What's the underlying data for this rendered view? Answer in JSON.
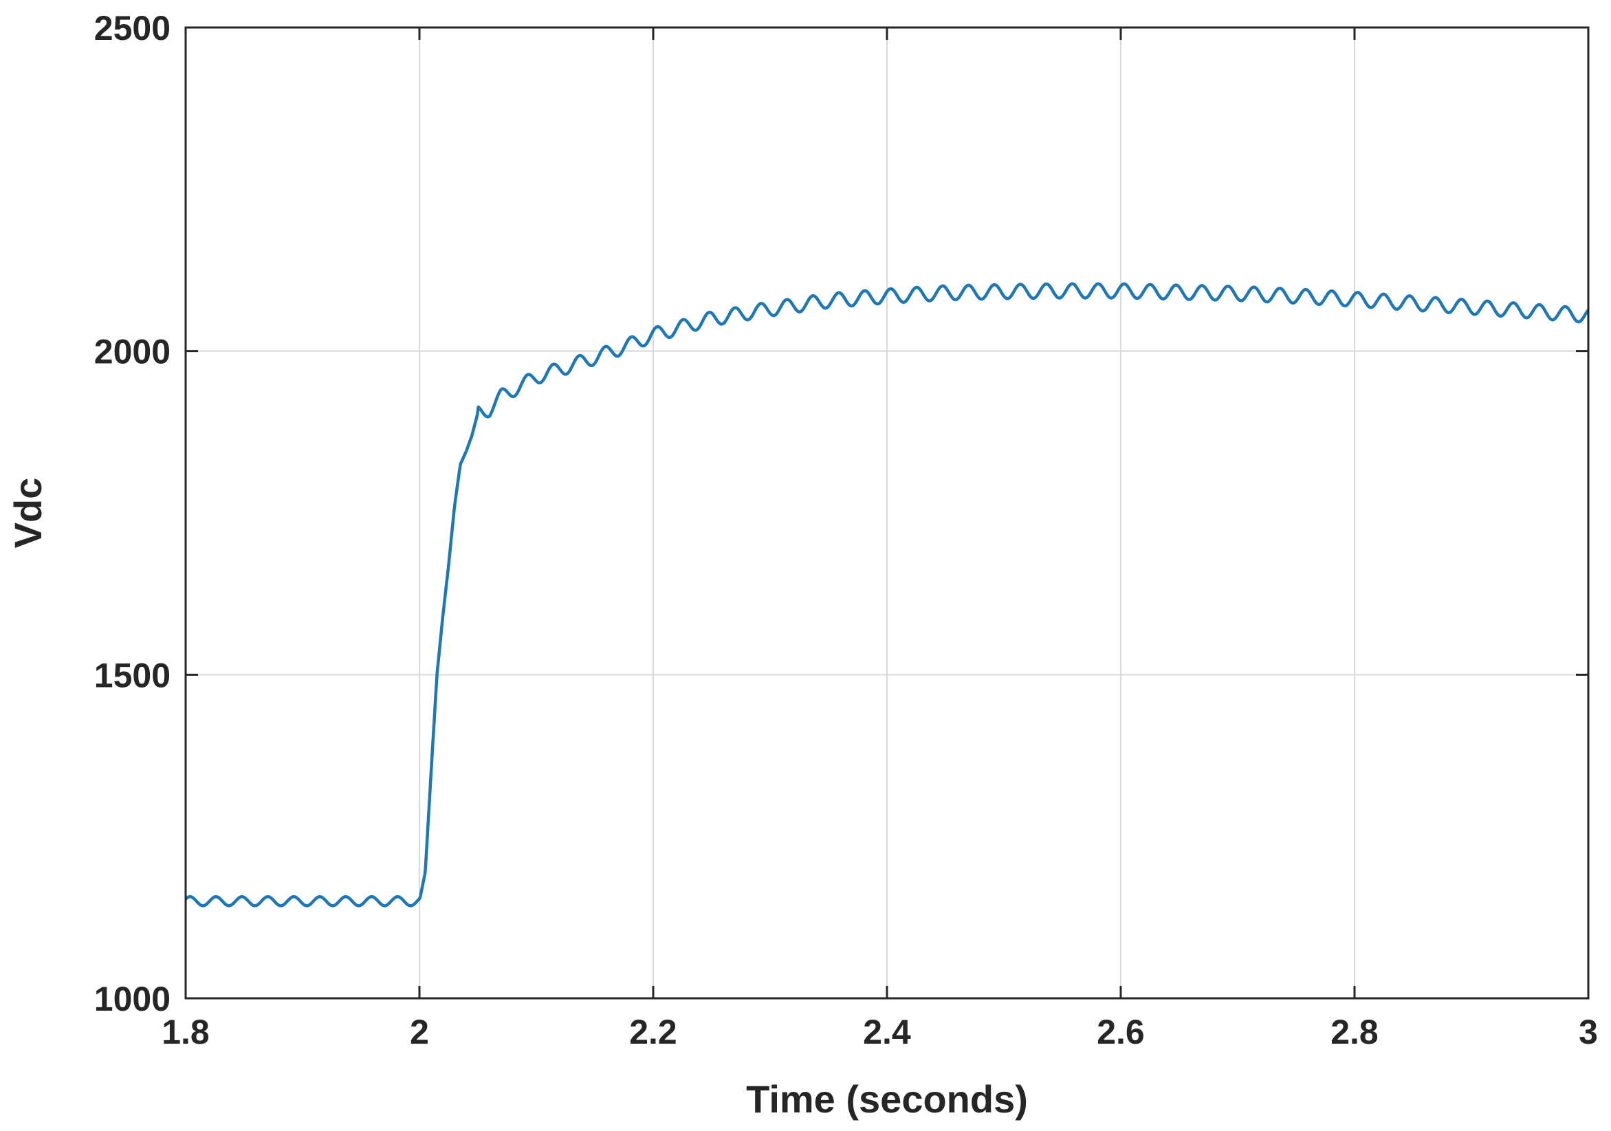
{
  "chart_data": {
    "type": "line",
    "title": "",
    "xlabel": "Time (seconds)",
    "ylabel": "Vdc",
    "xlim": [
      1.8,
      3.0
    ],
    "ylim": [
      1000,
      2500
    ],
    "grid": true,
    "legend": "none",
    "x_ticks": [
      "1.8",
      "2",
      "2.2",
      "2.4",
      "2.6",
      "2.8",
      "3"
    ],
    "y_ticks": [
      "1000",
      "1500",
      "2000",
      "2500"
    ],
    "line_color": "#1f77b4",
    "series": [
      {
        "x": [
          1.8,
          1.82,
          1.84,
          1.86,
          1.88,
          1.9,
          1.92,
          1.94,
          1.96,
          1.98,
          2.0,
          2.005,
          2.01,
          2.015,
          2.02,
          2.025,
          2.03,
          2.035,
          2.04,
          2.045,
          2.05,
          2.06,
          2.07,
          2.08,
          2.1,
          2.12,
          2.15,
          2.18,
          2.2,
          2.25,
          2.3,
          2.35,
          2.4,
          2.45,
          2.5,
          2.55,
          2.6,
          2.65,
          2.7,
          2.75,
          2.8,
          2.85,
          2.9,
          2.95,
          3.0
        ],
        "values": [
          1150,
          1150,
          1150,
          1150,
          1150,
          1150,
          1150,
          1150,
          1150,
          1150,
          1150,
          1195,
          1350,
          1500,
          1590,
          1670,
          1760,
          1825,
          1845,
          1870,
          1905,
          1910,
          1930,
          1940,
          1960,
          1972,
          1990,
          2010,
          2025,
          2050,
          2065,
          2078,
          2085,
          2090,
          2092,
          2093,
          2093,
          2091,
          2089,
          2085,
          2080,
          2074,
          2068,
          2062,
          2055
        ]
      }
    ]
  }
}
